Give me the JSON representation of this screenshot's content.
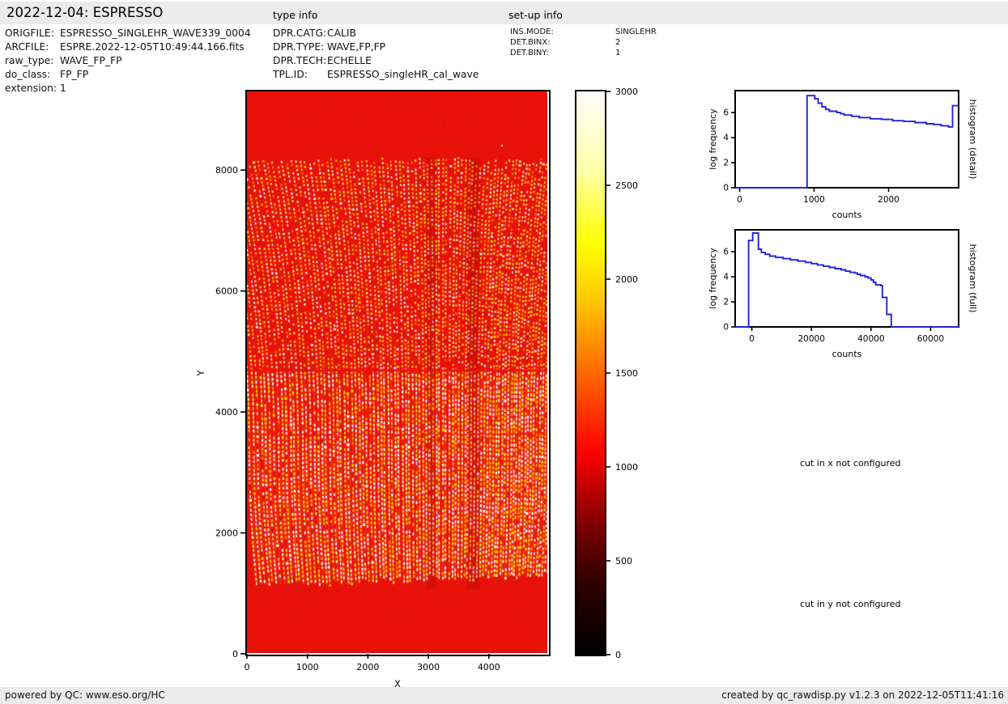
{
  "header": {
    "title": "2022-12-04: ESPRESSO",
    "type_info_title": "type info",
    "setup_info_title": "set-up info"
  },
  "file_info": [
    {
      "label": "ORIGFILE:",
      "value": "ESPRESSO_SINGLEHR_WAVE339_0004"
    },
    {
      "label": "ARCFILE:",
      "value": "ESPRE.2022-12-05T10:49:44.166.fits"
    },
    {
      "label": "raw_type:",
      "value": "WAVE_FP_FP"
    },
    {
      "label": "do_class:",
      "value": "FP_FP"
    },
    {
      "label": "extension:",
      "value": "1"
    }
  ],
  "type_info": [
    {
      "label": "DPR.CATG:",
      "value": "CALIB"
    },
    {
      "label": "DPR.TYPE:",
      "value": "WAVE,FP,FP"
    },
    {
      "label": "DPR.TECH:",
      "value": "ECHELLE"
    },
    {
      "label": "TPL.ID:",
      "value": "ESPRESSO_singleHR_cal_wave"
    }
  ],
  "setup_info": [
    {
      "label": "INS.MODE:",
      "value": "SINGLEHR"
    },
    {
      "label": "DET.BINX:",
      "value": "2"
    },
    {
      "label": "DET.BINY:",
      "value": "1"
    }
  ],
  "messages": {
    "cut_x": "cut in x not configured",
    "cut_y": "cut in y not configured"
  },
  "footer": {
    "left": "powered by QC: www.eso.org/HC",
    "right": "created by qc_rawdisp.py v1.2.3 on 2022-12-05T11:41:16"
  },
  "chart_data": [
    {
      "id": "raw_image",
      "type": "heatmap",
      "title": "",
      "xlabel": "X",
      "ylabel": "Y",
      "xlim": [
        0,
        4993
      ],
      "ylim": [
        0,
        9301
      ],
      "xticks": [
        0,
        1000,
        2000,
        3000,
        4000
      ],
      "yticks": [
        0,
        2000,
        4000,
        6000,
        8000
      ],
      "colormap": "hot",
      "value_range": [
        0,
        3000
      ],
      "background_level_counts": 950,
      "stripe_region_y": [
        1100,
        8200
      ],
      "detector_gap_y": 4700,
      "n_order_stripes": 87,
      "description": "ESPRESSO raw FP wavelength-calibration echelle frame: red background with curved columns of dashed yellow/white Fabry-Perot emission spots"
    },
    {
      "id": "colorbar",
      "type": "colorbar",
      "colormap": "hot",
      "range": [
        0,
        3000
      ],
      "ticks": [
        0,
        500,
        1000,
        1500,
        2000,
        2500,
        3000
      ]
    },
    {
      "id": "histogram_detail",
      "type": "step-line",
      "right_label": "histogram (detail)",
      "xlabel": "counts",
      "ylabel": "log frequency",
      "xlim": [
        -60,
        2940
      ],
      "ylim": [
        0,
        7.75
      ],
      "xticks": [
        0,
        1000,
        2000
      ],
      "yticks": [
        0,
        2,
        4,
        6
      ],
      "line_color": "#2222dd",
      "steps": [
        [
          -60,
          0
        ],
        [
          905,
          7.35
        ],
        [
          1010,
          7.1
        ],
        [
          1055,
          6.75
        ],
        [
          1105,
          6.45
        ],
        [
          1155,
          6.25
        ],
        [
          1205,
          6.1
        ],
        [
          1305,
          6.0
        ],
        [
          1355,
          5.9
        ],
        [
          1405,
          5.8
        ],
        [
          1505,
          5.7
        ],
        [
          1605,
          5.6
        ],
        [
          1755,
          5.5
        ],
        [
          1905,
          5.45
        ],
        [
          2055,
          5.35
        ],
        [
          2205,
          5.3
        ],
        [
          2355,
          5.2
        ],
        [
          2505,
          5.1
        ],
        [
          2605,
          5.05
        ],
        [
          2705,
          4.95
        ],
        [
          2805,
          4.85
        ],
        [
          2858,
          6.55
        ]
      ]
    },
    {
      "id": "histogram_full",
      "type": "step-line",
      "right_label": "histogram (full)",
      "xlabel": "counts",
      "ylabel": "log frequency",
      "xlim": [
        -5600,
        69400
      ],
      "ylim": [
        0,
        7.75
      ],
      "xticks": [
        0,
        20000,
        40000,
        60000
      ],
      "yticks": [
        0,
        2,
        4,
        6
      ],
      "line_color": "#2222dd",
      "steps": [
        [
          -5600,
          0
        ],
        [
          -1100,
          6.9
        ],
        [
          300,
          7.5
        ],
        [
          2200,
          6.2
        ],
        [
          3200,
          5.95
        ],
        [
          4500,
          5.8
        ],
        [
          6000,
          5.65
        ],
        [
          8000,
          5.55
        ],
        [
          10500,
          5.45
        ],
        [
          13000,
          5.35
        ],
        [
          15500,
          5.25
        ],
        [
          18000,
          5.15
        ],
        [
          20000,
          5.05
        ],
        [
          22000,
          4.95
        ],
        [
          24000,
          4.85
        ],
        [
          26000,
          4.75
        ],
        [
          28000,
          4.65
        ],
        [
          30000,
          4.55
        ],
        [
          31500,
          4.45
        ],
        [
          33000,
          4.35
        ],
        [
          34500,
          4.3
        ],
        [
          35500,
          4.2
        ],
        [
          36500,
          4.1
        ],
        [
          38000,
          4.0
        ],
        [
          39000,
          3.9
        ],
        [
          40000,
          3.75
        ],
        [
          40800,
          3.55
        ],
        [
          41600,
          3.35
        ],
        [
          43300,
          3.3
        ],
        [
          43800,
          2.35
        ],
        [
          45300,
          1.0
        ],
        [
          46800,
          0
        ]
      ]
    }
  ]
}
